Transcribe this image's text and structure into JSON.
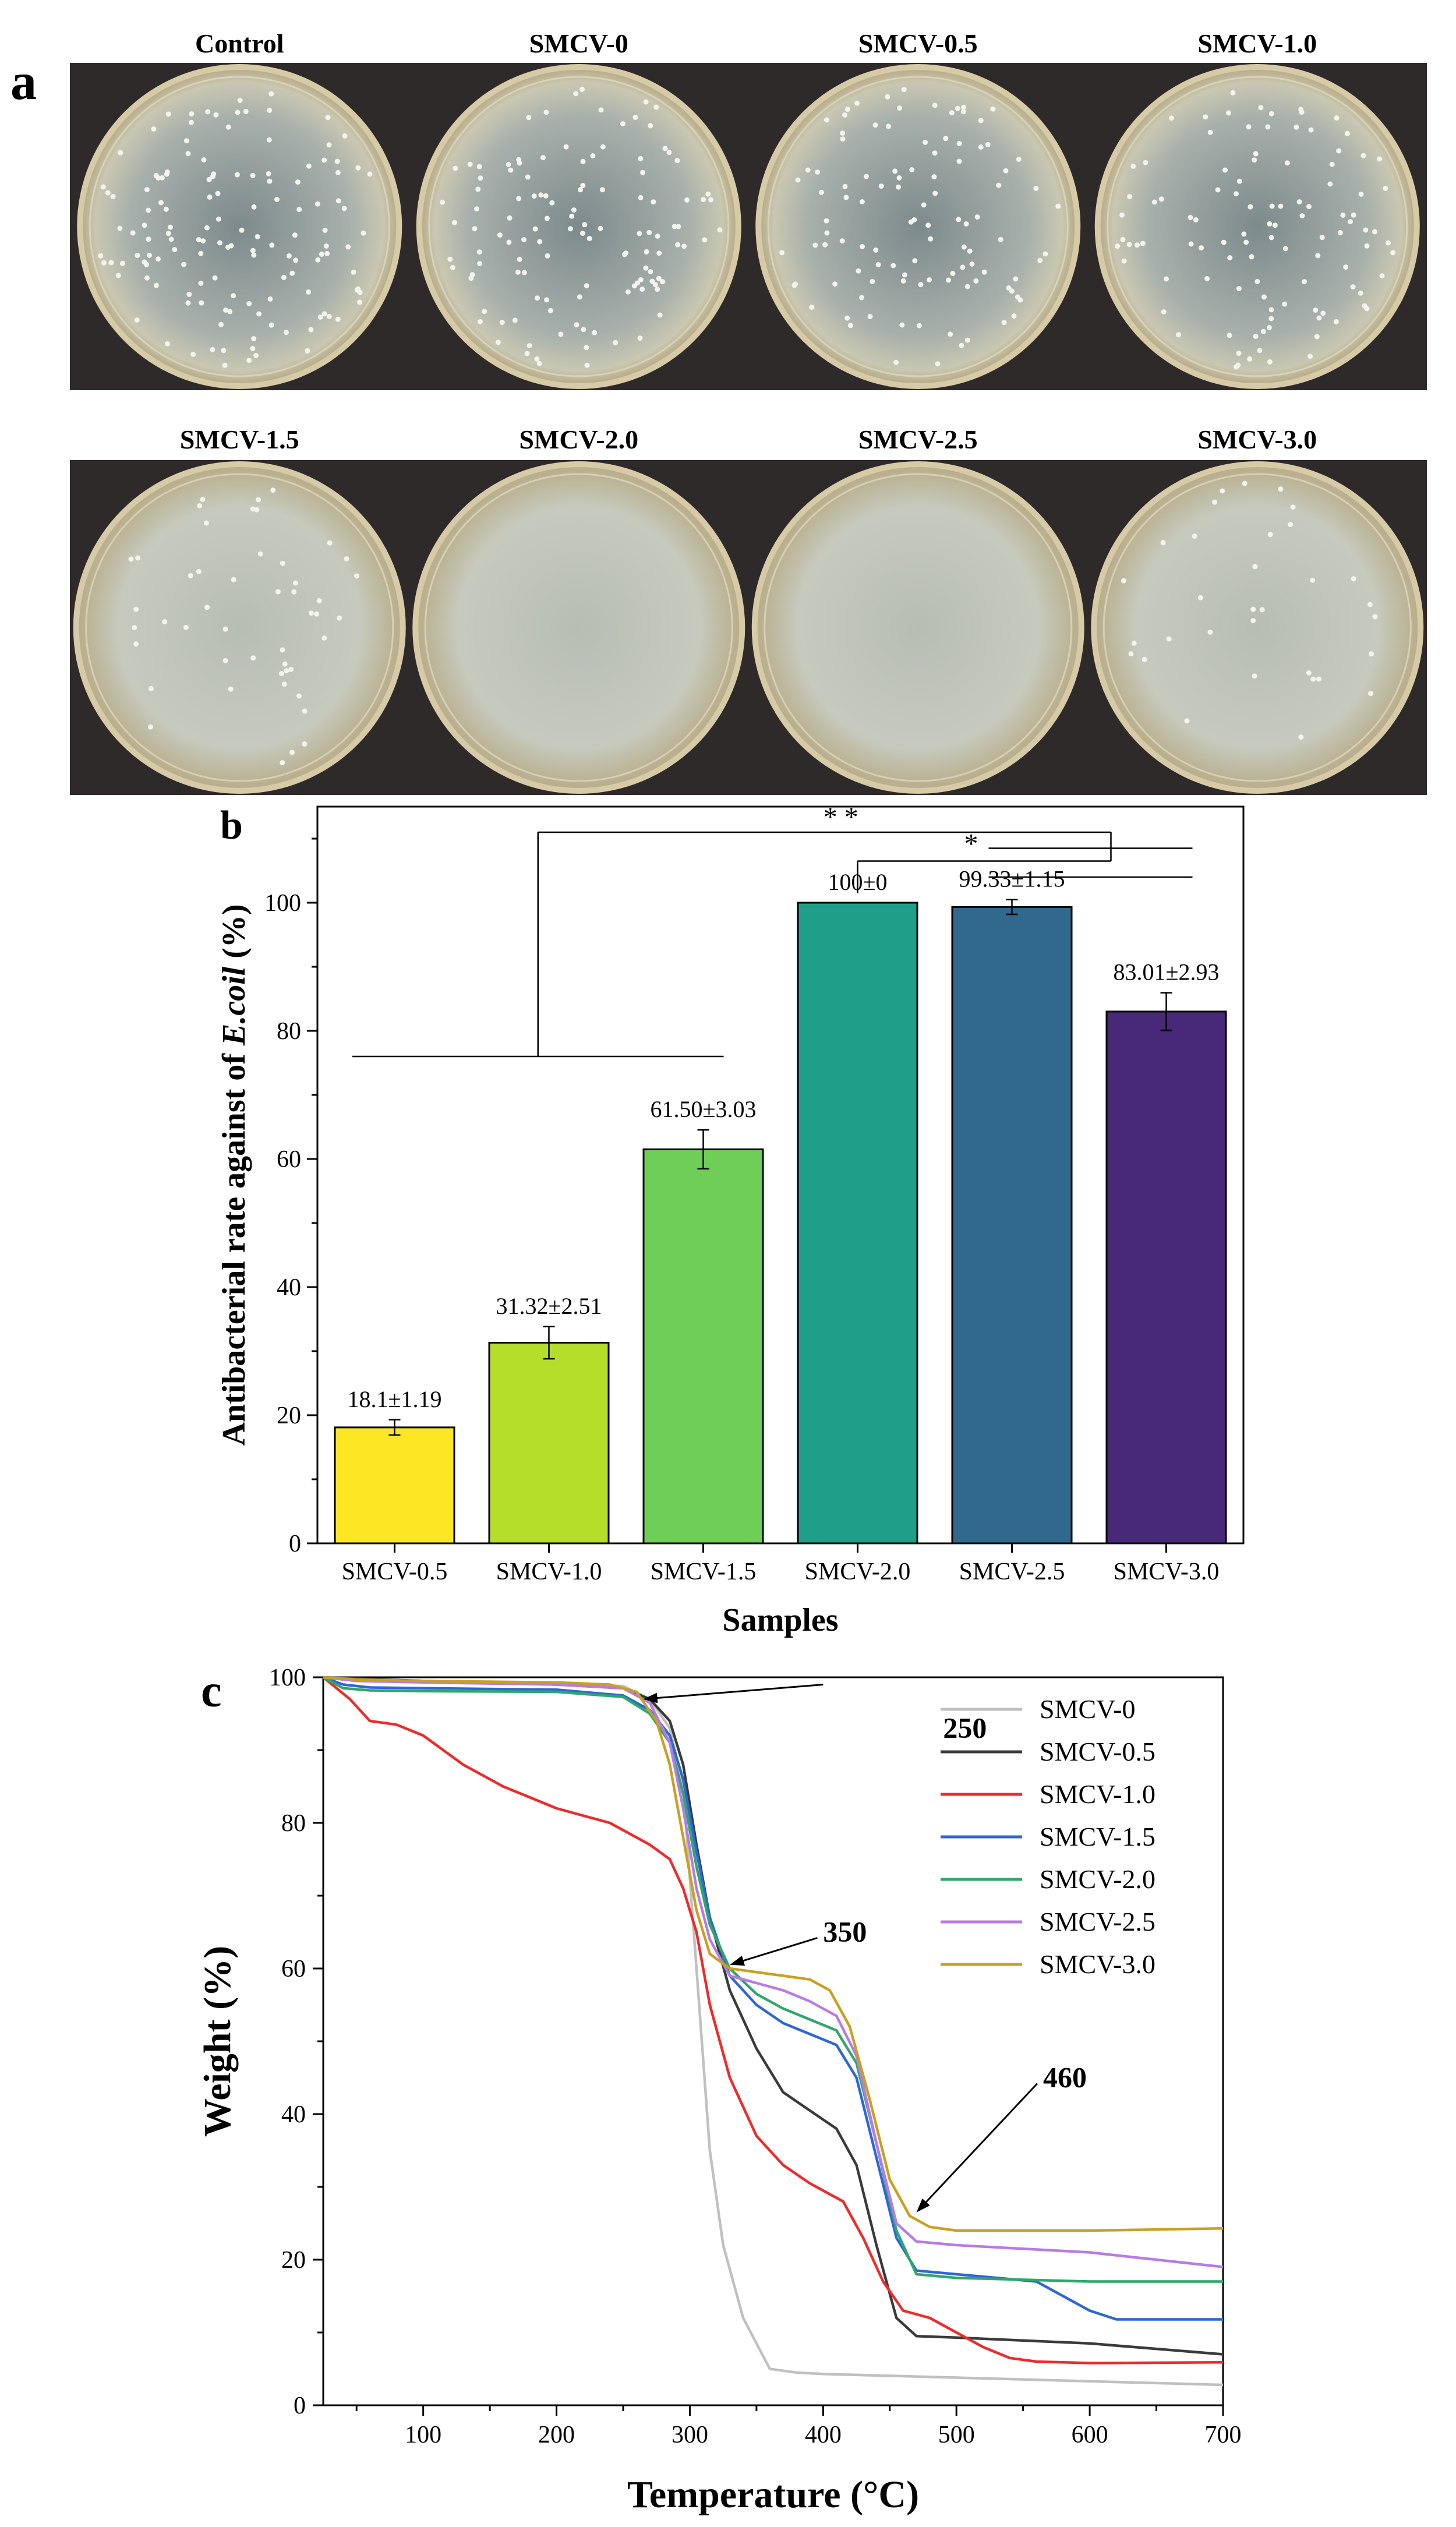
{
  "panel_letters": {
    "a": "a",
    "b": "b",
    "c": "c"
  },
  "dish_panel": {
    "row1": [
      "Control",
      "SMCV-0",
      "SMCV-0.5",
      "SMCV-1.0"
    ],
    "row2": [
      "SMCV-1.5",
      "SMCV-2.0",
      "SMCV-2.5",
      "SMCV-3.0"
    ],
    "colony_density": [
      0.85,
      0.75,
      0.65,
      0.65,
      0.3,
      0.0,
      0.0,
      0.2
    ]
  },
  "chart_data": [
    {
      "type": "bar",
      "title": "",
      "xlabel": "Samples",
      "ylabel_main": "Antibacterial rate against of ",
      "ylabel_italic": "E.coil",
      "ylabel_tail": " (%)",
      "ylim": [
        0,
        115
      ],
      "yticks": [
        0,
        20,
        40,
        60,
        80,
        100
      ],
      "categories": [
        "SMCV-0.5",
        "SMCV-1.0",
        "SMCV-1.5",
        "SMCV-2.0",
        "SMCV-2.5",
        "SMCV-3.0"
      ],
      "values": [
        18.1,
        31.32,
        61.5,
        100,
        99.33,
        83.01
      ],
      "errors": [
        1.19,
        2.51,
        3.03,
        0,
        1.15,
        2.93
      ],
      "labels": [
        "18.1±1.19",
        "31.32±2.51",
        "61.50±3.03",
        "100±0",
        "99.33±1.15",
        "83.01±2.93"
      ],
      "colors": [
        "#fde725",
        "#b5de2b",
        "#6ece58",
        "#1f9e89",
        "#31688e",
        "#482878"
      ],
      "significance": {
        "double_star": "* *",
        "single_star": "*",
        "bracket_low_y": 76,
        "bracket_high_y": 111,
        "bracket_mid_y": 106.5,
        "bracket_mid_right_y": 108.5,
        "bracket_short_y": 104
      }
    },
    {
      "type": "line",
      "title": "",
      "xlabel": "Temperature (°C)",
      "ylabel": "Weight (%)",
      "xlim": [
        25,
        700
      ],
      "ylim": [
        0,
        100
      ],
      "xticks": [
        100,
        200,
        300,
        400,
        500,
        600,
        700
      ],
      "yticks": [
        0,
        20,
        40,
        60,
        80,
        100
      ],
      "legend_position": "top-right",
      "annotations": [
        {
          "text": "250",
          "point": [
            265,
            97
          ],
          "label": [
            490,
            93
          ]
        },
        {
          "text": "350",
          "point": [
            330,
            60.5
          ],
          "label": [
            400,
            65
          ]
        },
        {
          "text": "460",
          "point": [
            470,
            26.5
          ],
          "label": [
            565,
            45
          ]
        }
      ],
      "series": [
        {
          "name": "SMCV-0",
          "color": "#c0c0c0",
          "x": [
            25,
            50,
            100,
            150,
            200,
            250,
            270,
            285,
            295,
            305,
            315,
            325,
            340,
            360,
            380,
            400,
            500,
            600,
            700
          ],
          "y": [
            100,
            99.6,
            99.4,
            99.2,
            99,
            98.8,
            97,
            93,
            85,
            60,
            35,
            22,
            12,
            5,
            4.5,
            4.3,
            3.8,
            3.3,
            2.8
          ]
        },
        {
          "name": "SMCV-0.5",
          "color": "#3a3a3a",
          "x": [
            25,
            50,
            100,
            200,
            250,
            270,
            285,
            295,
            305,
            315,
            330,
            350,
            370,
            390,
            410,
            425,
            440,
            455,
            470,
            500,
            600,
            700
          ],
          "y": [
            100,
            99.8,
            99.5,
            99,
            98.5,
            97,
            94,
            88,
            77,
            67,
            57,
            49,
            43,
            40.5,
            38,
            33,
            22,
            12,
            9.5,
            9.3,
            8.5,
            7
          ]
        },
        {
          "name": "SMCV-1.0",
          "color": "#ee2a2a",
          "x": [
            25,
            45,
            60,
            80,
            100,
            130,
            160,
            200,
            240,
            270,
            285,
            295,
            305,
            315,
            330,
            350,
            370,
            390,
            415,
            430,
            445,
            460,
            480,
            500,
            520,
            540,
            560,
            600,
            700
          ],
          "y": [
            100,
            97,
            94,
            93.5,
            92,
            88,
            85,
            82,
            80,
            77,
            75,
            71,
            65,
            55,
            45,
            37,
            33,
            30.5,
            28,
            23,
            17,
            13,
            12,
            10,
            8,
            6.5,
            6,
            5.8,
            5.9
          ]
        },
        {
          "name": "SMCV-1.5",
          "color": "#2e66d6",
          "x": [
            25,
            40,
            60,
            100,
            200,
            250,
            270,
            285,
            295,
            305,
            315,
            330,
            350,
            370,
            390,
            410,
            425,
            440,
            455,
            470,
            500,
            560,
            600,
            620,
            700
          ],
          "y": [
            100,
            99,
            98.6,
            98.5,
            98.3,
            97.5,
            95.5,
            92,
            86,
            76,
            67,
            59,
            55,
            52.5,
            51,
            49.5,
            45,
            34,
            23,
            18.5,
            18,
            17,
            13,
            11.8,
            11.8
          ]
        },
        {
          "name": "SMCV-2.0",
          "color": "#2ea86a",
          "x": [
            25,
            40,
            60,
            100,
            200,
            250,
            270,
            285,
            295,
            305,
            315,
            330,
            350,
            370,
            390,
            410,
            425,
            440,
            455,
            470,
            500,
            600,
            700
          ],
          "y": [
            100,
            98.5,
            98.2,
            98.1,
            98,
            97.3,
            95,
            91,
            84,
            74,
            66,
            60,
            56.5,
            54.5,
            53,
            51.5,
            47,
            36,
            24,
            18,
            17.5,
            17,
            17
          ]
        },
        {
          "name": "SMCV-2.5",
          "color": "#b87be6",
          "x": [
            25,
            50,
            100,
            200,
            250,
            270,
            285,
            295,
            305,
            315,
            330,
            350,
            370,
            390,
            410,
            425,
            440,
            455,
            470,
            500,
            600,
            700
          ],
          "y": [
            100,
            99.5,
            99.3,
            99,
            98.5,
            96.5,
            91,
            82,
            71,
            64,
            59,
            58,
            57,
            55.5,
            53.5,
            48,
            36,
            25,
            22.5,
            22,
            21,
            19
          ]
        },
        {
          "name": "SMCV-3.0",
          "color": "#c9a020",
          "x": [
            25,
            50,
            100,
            200,
            240,
            260,
            275,
            285,
            295,
            305,
            315,
            330,
            350,
            370,
            390,
            405,
            420,
            435,
            450,
            465,
            480,
            500,
            600,
            700
          ],
          "y": [
            100,
            99.7,
            99.5,
            99.3,
            99,
            98,
            94,
            88,
            78,
            68,
            62,
            60,
            59.5,
            59,
            58.5,
            57,
            52,
            42,
            31,
            26,
            24.5,
            24,
            24,
            24.3
          ]
        }
      ]
    }
  ]
}
